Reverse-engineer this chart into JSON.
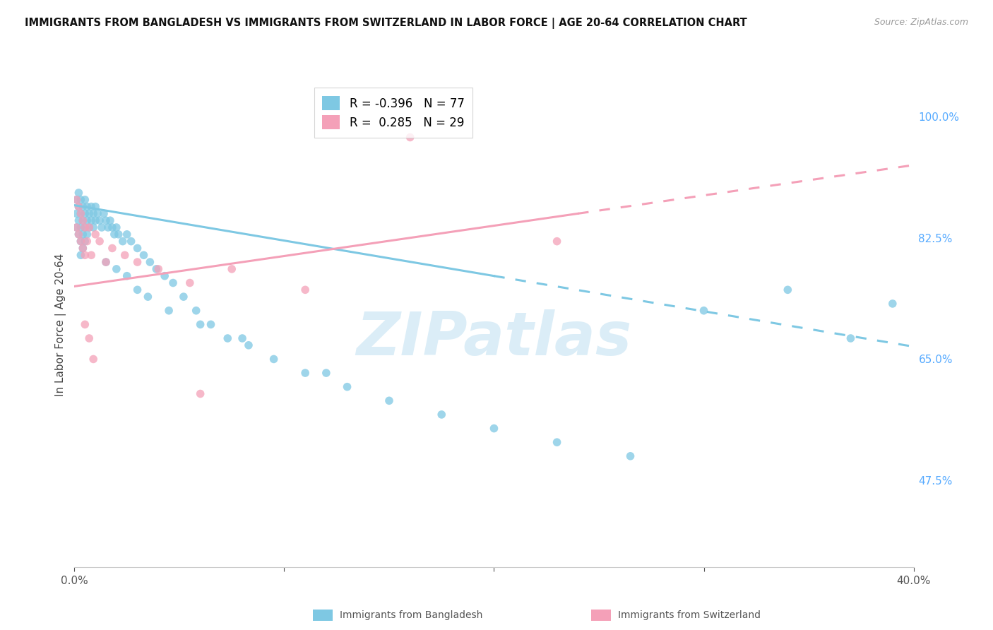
{
  "title": "IMMIGRANTS FROM BANGLADESH VS IMMIGRANTS FROM SWITZERLAND IN LABOR FORCE | AGE 20-64 CORRELATION CHART",
  "source": "Source: ZipAtlas.com",
  "ylabel": "In Labor Force | Age 20-64",
  "xlim": [
    0.0,
    0.4
  ],
  "ylim": [
    0.35,
    1.05
  ],
  "x_ticks": [
    0.0,
    0.1,
    0.2,
    0.3,
    0.4
  ],
  "x_tick_labels": [
    "0.0%",
    "",
    "",
    "",
    "40.0%"
  ],
  "y_ticks_right": [
    1.0,
    0.825,
    0.65,
    0.475
  ],
  "y_tick_labels_right": [
    "100.0%",
    "82.5%",
    "65.0%",
    "47.5%"
  ],
  "r_bangladesh": -0.396,
  "n_bangladesh": 77,
  "r_switzerland": 0.285,
  "n_switzerland": 29,
  "color_bangladesh": "#7ec8e3",
  "color_switzerland": "#f4a0b8",
  "bg_color": "#ffffff",
  "grid_color": "#e8e8e8",
  "watermark_text": "ZIPatlas",
  "watermark_color": "#cce6f4",
  "bangladesh_x": [
    0.001,
    0.001,
    0.001,
    0.002,
    0.002,
    0.002,
    0.002,
    0.003,
    0.003,
    0.003,
    0.003,
    0.003,
    0.004,
    0.004,
    0.004,
    0.004,
    0.005,
    0.005,
    0.005,
    0.005,
    0.006,
    0.006,
    0.006,
    0.007,
    0.007,
    0.008,
    0.008,
    0.009,
    0.009,
    0.01,
    0.01,
    0.011,
    0.012,
    0.013,
    0.014,
    0.015,
    0.016,
    0.017,
    0.018,
    0.019,
    0.02,
    0.021,
    0.023,
    0.025,
    0.027,
    0.03,
    0.033,
    0.036,
    0.039,
    0.043,
    0.047,
    0.052,
    0.058,
    0.065,
    0.073,
    0.083,
    0.095,
    0.11,
    0.13,
    0.15,
    0.175,
    0.2,
    0.23,
    0.265,
    0.3,
    0.34,
    0.37,
    0.39,
    0.015,
    0.02,
    0.025,
    0.03,
    0.035,
    0.045,
    0.06,
    0.08,
    0.12
  ],
  "bangladesh_y": [
    0.88,
    0.86,
    0.84,
    0.89,
    0.87,
    0.85,
    0.83,
    0.88,
    0.86,
    0.84,
    0.82,
    0.8,
    0.87,
    0.85,
    0.83,
    0.81,
    0.88,
    0.86,
    0.84,
    0.82,
    0.87,
    0.85,
    0.83,
    0.86,
    0.84,
    0.87,
    0.85,
    0.86,
    0.84,
    0.87,
    0.85,
    0.86,
    0.85,
    0.84,
    0.86,
    0.85,
    0.84,
    0.85,
    0.84,
    0.83,
    0.84,
    0.83,
    0.82,
    0.83,
    0.82,
    0.81,
    0.8,
    0.79,
    0.78,
    0.77,
    0.76,
    0.74,
    0.72,
    0.7,
    0.68,
    0.67,
    0.65,
    0.63,
    0.61,
    0.59,
    0.57,
    0.55,
    0.53,
    0.51,
    0.72,
    0.75,
    0.68,
    0.73,
    0.79,
    0.78,
    0.77,
    0.75,
    0.74,
    0.72,
    0.7,
    0.68,
    0.63
  ],
  "switzerland_x": [
    0.001,
    0.001,
    0.002,
    0.002,
    0.003,
    0.003,
    0.004,
    0.004,
    0.005,
    0.005,
    0.006,
    0.007,
    0.008,
    0.01,
    0.012,
    0.015,
    0.018,
    0.024,
    0.03,
    0.04,
    0.055,
    0.075,
    0.11,
    0.16,
    0.23,
    0.005,
    0.007,
    0.009,
    0.06
  ],
  "switzerland_y": [
    0.88,
    0.84,
    0.87,
    0.83,
    0.86,
    0.82,
    0.85,
    0.81,
    0.84,
    0.8,
    0.82,
    0.84,
    0.8,
    0.83,
    0.82,
    0.79,
    0.81,
    0.8,
    0.79,
    0.78,
    0.76,
    0.78,
    0.75,
    0.97,
    0.82,
    0.7,
    0.68,
    0.65,
    0.6
  ],
  "trend_bangladesh_x0": 0.0,
  "trend_bangladesh_x1": 0.4,
  "trend_bangladesh_y0": 0.872,
  "trend_bangladesh_y1": 0.668,
  "trend_bangladesh_solid_end": 0.2,
  "trend_switzerland_x0": 0.0,
  "trend_switzerland_x1": 0.4,
  "trend_switzerland_y0": 0.755,
  "trend_switzerland_y1": 0.93,
  "trend_switzerland_solid_end": 0.24
}
